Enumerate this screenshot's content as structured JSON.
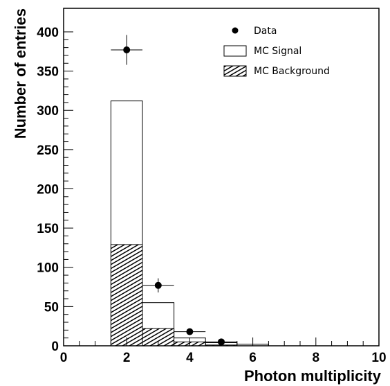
{
  "chart_data": {
    "type": "bar",
    "xlabel": "Photon multiplicity",
    "ylabel": "Number of entries",
    "xlim": [
      0,
      10
    ],
    "ylim": [
      0,
      430
    ],
    "x_major_ticks": [
      0,
      2,
      4,
      6,
      8,
      10
    ],
    "x_minor_step": 0.5,
    "y_major_ticks": [
      0,
      50,
      100,
      150,
      200,
      250,
      300,
      350,
      400
    ],
    "y_minor_step": 10,
    "grid": false,
    "legend_position": "top-right",
    "legend": [
      {
        "key": "data",
        "label": "Data"
      },
      {
        "key": "signal",
        "label": "MC Signal"
      },
      {
        "key": "background",
        "label": "MC Background"
      }
    ],
    "bins": [
      {
        "center": 2,
        "width": 1,
        "signal_total": 312,
        "background": 129
      },
      {
        "center": 3,
        "width": 1,
        "signal_total": 55,
        "background": 22
      },
      {
        "center": 4,
        "width": 1,
        "signal_total": 10,
        "background": 5
      },
      {
        "center": 5,
        "width": 1,
        "signal_total": 4,
        "background": 1
      },
      {
        "center": 6,
        "width": 1,
        "signal_total": 2,
        "background": 0
      }
    ],
    "data_points": [
      {
        "x": 2,
        "y": 377,
        "xerr": 0.5,
        "yerr": 19
      },
      {
        "x": 3,
        "y": 77,
        "xerr": 0.5,
        "yerr": 9
      },
      {
        "x": 4,
        "y": 18,
        "xerr": 0.5,
        "yerr": 4
      },
      {
        "x": 5,
        "y": 5,
        "xerr": 0.5,
        "yerr": 2
      }
    ]
  }
}
